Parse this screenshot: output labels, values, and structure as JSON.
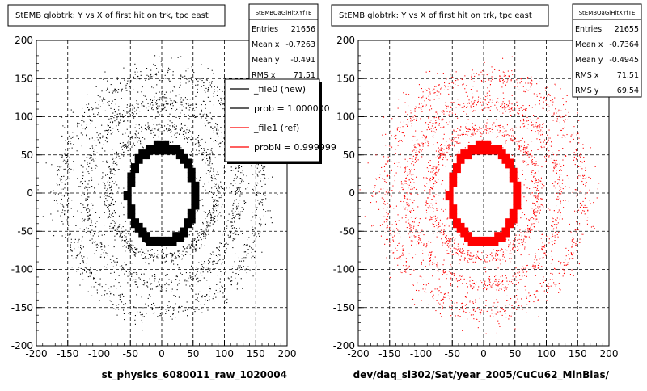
{
  "panels": [
    {
      "title": "StEMB globtrk: Y vs X of first hit on trk, tpc east",
      "xlabel": "st_physics_6080011_raw_1020004",
      "color": "#000000",
      "stats": {
        "name": "StEMBQaGlHitXYfTE",
        "rows": [
          {
            "label": "Entries",
            "value": "21656"
          },
          {
            "label": "Mean x",
            "value": "-0.7263"
          },
          {
            "label": "Mean y",
            "value": "-0.491"
          },
          {
            "label": "RMS x",
            "value": "71.51"
          }
        ]
      },
      "legend": [
        {
          "label": "_file0 (new)",
          "color": "#000000"
        },
        {
          "label": "prob = 1.000000",
          "color": "#000000"
        },
        {
          "label": "_file1 (ref)",
          "color": "#ff0000"
        },
        {
          "label": "probN = 0.999999",
          "color": "#ff0000"
        }
      ]
    },
    {
      "title": "StEMB globtrk: Y vs X of first hit on trk, tpc east",
      "xlabel": "dev/daq_sl302/Sat/year_2005/CuCu62_MinBias/",
      "color": "#ff0000",
      "stats": {
        "name": "StEMBQaGlHitXYfTE",
        "rows": [
          {
            "label": "Entries",
            "value": "21655"
          },
          {
            "label": "Mean x",
            "value": "-0.7364"
          },
          {
            "label": "Mean y",
            "value": "-0.4945"
          },
          {
            "label": "RMS x",
            "value": "71.51"
          },
          {
            "label": "RMS y",
            "value": "69.54"
          }
        ]
      }
    }
  ],
  "chart_data": [
    {
      "type": "scatter",
      "title": "StEMB globtrk: Y vs X of first hit on trk, tpc east",
      "xlabel": "st_physics_6080011_raw_1020004",
      "ylabel": "",
      "xlim": [
        -200,
        200
      ],
      "ylim": [
        -200,
        200
      ],
      "xticks": [
        -200,
        -150,
        -100,
        -50,
        0,
        50,
        100,
        150,
        200
      ],
      "yticks": [
        -200,
        -150,
        -100,
        -50,
        0,
        50,
        100,
        150,
        200
      ],
      "grid": true,
      "marker_color": "#000000",
      "series": [
        {
          "values": [
            [
              -198,
              5
            ],
            [
              -190,
              -30
            ],
            [
              -185,
              40
            ],
            [
              -160,
              100
            ],
            [
              -150,
              -110
            ],
            [
              -120,
              130
            ],
            [
              -100,
              -140
            ],
            [
              -60,
              150
            ],
            [
              0,
              160
            ],
            [
              60,
              150
            ],
            [
              110,
              120
            ],
            [
              150,
              80
            ],
            [
              170,
              20
            ],
            [
              165,
              -40
            ],
            [
              140,
              -100
            ],
            [
              100,
              -140
            ],
            [
              40,
              -160
            ],
            [
              -40,
              -155
            ],
            [
              -52,
              0
            ],
            [
              -50,
              30
            ],
            [
              -45,
              50
            ],
            [
              -30,
              60
            ],
            [
              0,
              62
            ],
            [
              30,
              60
            ],
            [
              45,
              50
            ],
            [
              55,
              20
            ],
            [
              55,
              -10
            ],
            [
              50,
              -40
            ],
            [
              35,
              -60
            ],
            [
              0,
              -65
            ],
            [
              -30,
              -60
            ],
            [
              -45,
              -40
            ]
          ]
        }
      ]
    },
    {
      "type": "scatter",
      "title": "StEMB globtrk: Y vs X of first hit on trk, tpc east",
      "xlabel": "dev/daq_sl302/Sat/year_2005/CuCu62_MinBias/",
      "ylabel": "",
      "xlim": [
        -200,
        200
      ],
      "ylim": [
        -200,
        200
      ],
      "xticks": [
        -200,
        -150,
        -100,
        -50,
        0,
        50,
        100,
        150,
        200
      ],
      "yticks": [
        -200,
        -150,
        -100,
        -50,
        0,
        50,
        100,
        150,
        200
      ],
      "grid": true,
      "marker_color": "#ff0000",
      "series": [
        {
          "values": [
            [
              -198,
              5
            ],
            [
              -190,
              -30
            ],
            [
              -185,
              40
            ],
            [
              -160,
              100
            ],
            [
              -150,
              -110
            ],
            [
              -120,
              130
            ],
            [
              -100,
              -140
            ],
            [
              -60,
              150
            ],
            [
              0,
              160
            ],
            [
              60,
              150
            ],
            [
              110,
              120
            ],
            [
              150,
              80
            ],
            [
              170,
              20
            ],
            [
              165,
              -40
            ],
            [
              140,
              -100
            ],
            [
              100,
              -140
            ],
            [
              40,
              -160
            ],
            [
              -40,
              -155
            ],
            [
              -52,
              0
            ],
            [
              -50,
              30
            ],
            [
              -45,
              50
            ],
            [
              -30,
              60
            ],
            [
              0,
              62
            ],
            [
              30,
              60
            ],
            [
              45,
              50
            ],
            [
              55,
              20
            ],
            [
              55,
              -10
            ],
            [
              50,
              -40
            ],
            [
              35,
              -60
            ],
            [
              0,
              -65
            ],
            [
              -30,
              -60
            ],
            [
              -45,
              -40
            ]
          ]
        }
      ]
    }
  ]
}
